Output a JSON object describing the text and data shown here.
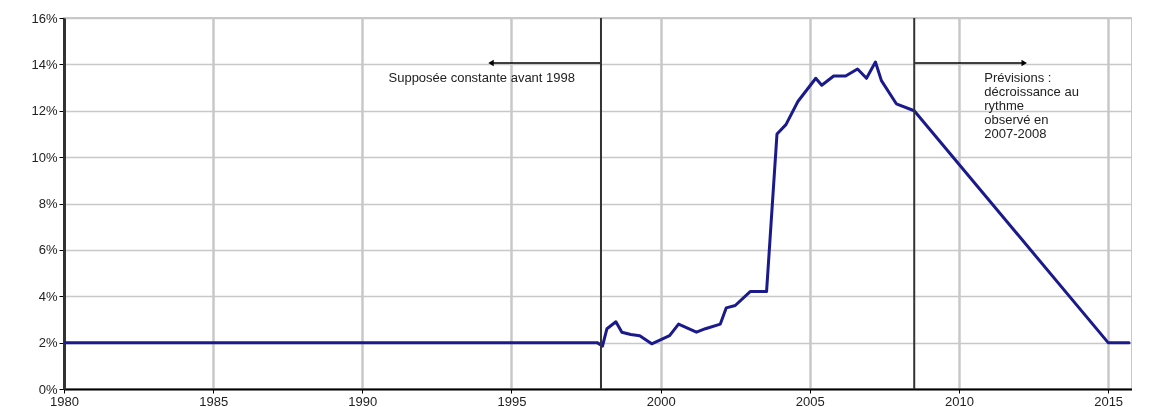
{
  "chart_data": {
    "type": "line",
    "x": [
      1980,
      1997.87,
      1998.05,
      1998.2,
      1998.5,
      1998.7,
      1999.0,
      1999.3,
      1999.7,
      2000.3,
      2000.6,
      2001.2,
      2001.5,
      2002.0,
      2002.2,
      2002.5,
      2003.0,
      2003.55,
      2003.9,
      2004.2,
      2004.6,
      2005.2,
      2005.4,
      2005.8,
      2006.2,
      2006.6,
      2006.9,
      2007.2,
      2007.4,
      2007.9,
      2008.5,
      2015.0,
      2015.7
    ],
    "series": [
      {
        "color": "#1a1a8c",
        "values": [
          2,
          2,
          1.85,
          2.6,
          2.9,
          2.45,
          2.35,
          2.3,
          1.95,
          2.3,
          2.8,
          2.45,
          2.6,
          2.8,
          3.5,
          3.6,
          4.2,
          4.2,
          11.0,
          11.4,
          12.4,
          13.4,
          13.1,
          13.5,
          13.5,
          13.8,
          13.4,
          14.1,
          13.3,
          12.3,
          12.0,
          2.0,
          2.0
        ]
      }
    ],
    "xlim": [
      1980,
      2015.8
    ],
    "xticks": [
      1980,
      1985,
      1990,
      1995,
      2000,
      2005,
      2010,
      2015
    ],
    "ylim": [
      0,
      16
    ],
    "yticks": [
      {
        "value": 0,
        "label": "0%"
      },
      {
        "value": 2,
        "label": "2%"
      },
      {
        "value": 4,
        "label": "4%"
      },
      {
        "value": 6,
        "label": "6%"
      },
      {
        "value": 8,
        "label": "8%"
      },
      {
        "value": 10,
        "label": "10%"
      },
      {
        "value": 12,
        "label": "12%"
      },
      {
        "value": 14,
        "label": "14%"
      },
      {
        "value": 16,
        "label": "16%"
      }
    ],
    "ref_lines": [
      {
        "axis": "x",
        "value": 1998,
        "color": "#333333",
        "label": "Supposée constante avant 1998"
      },
      {
        "axis": "x",
        "value": 2008.5,
        "color": "#333333",
        "label": "Prévisions : décroissance au rythme observé en 2007-2008"
      }
    ],
    "grid": true,
    "marker": "none",
    "line_style": "solid"
  }
}
